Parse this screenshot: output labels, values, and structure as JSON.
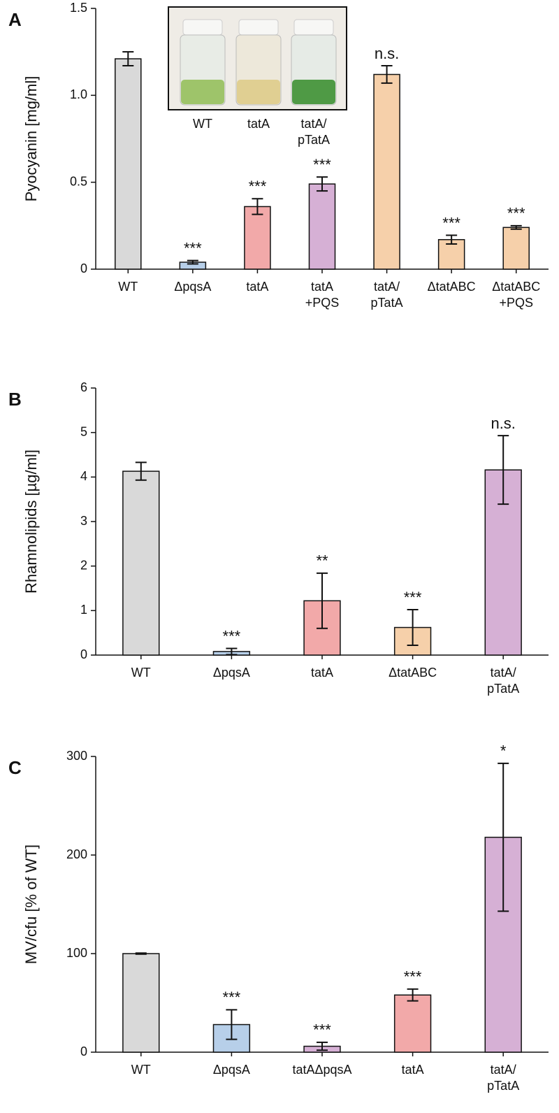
{
  "chart_data": [
    {
      "type": "bar",
      "panel": "A",
      "y_label": "Pyocyanin [mg/ml]",
      "categories": [
        [
          "WT"
        ],
        [
          "ΔpqsA"
        ],
        [
          "tatA"
        ],
        [
          "tatA",
          "+PQS"
        ],
        [
          "tatA/",
          "pTatA"
        ],
        [
          "ΔtatABC"
        ],
        [
          "ΔtatABC",
          "+PQS"
        ]
      ],
      "values": [
        1.21,
        0.04,
        0.36,
        0.49,
        1.12,
        0.17,
        0.24
      ],
      "errors": [
        0.04,
        0.01,
        0.045,
        0.04,
        0.05,
        0.025,
        0.01
      ],
      "annotations": [
        null,
        "***",
        "***",
        "***",
        "n.s.",
        "***",
        "***"
      ],
      "colors": [
        "#d9d9d9",
        "#b7cfe9",
        "#f2a9a9",
        "#d6b0d5",
        "#f6d0aa",
        "#f6d0aa",
        "#f6d0aa"
      ],
      "ylim": [
        0,
        1.5
      ],
      "yticks": [
        0,
        0.5,
        {
          "value": 1,
          "label": "1.0"
        },
        1.5
      ],
      "inset_labels": [
        [
          "WT"
        ],
        [
          "tatA"
        ],
        [
          "tatA/",
          "pTatA"
        ]
      ]
    },
    {
      "type": "bar",
      "panel": "B",
      "y_label": "Rhamnolipids [µg/ml]",
      "categories": [
        [
          "WT"
        ],
        [
          "ΔpqsA"
        ],
        [
          "tatA"
        ],
        [
          "ΔtatABC"
        ],
        [
          "tatA/",
          "pTatA"
        ]
      ],
      "values": [
        4.13,
        0.08,
        1.22,
        0.62,
        4.16
      ],
      "errors": [
        0.2,
        0.07,
        0.62,
        0.4,
        0.77
      ],
      "annotations": [
        null,
        "***",
        "**",
        "***",
        "n.s."
      ],
      "colors": [
        "#d9d9d9",
        "#b7cfe9",
        "#f2a9a9",
        "#f6d0aa",
        "#d6b0d5"
      ],
      "ylim": [
        0,
        6
      ],
      "yticks": [
        0,
        1,
        2,
        3,
        4,
        5,
        6
      ]
    },
    {
      "type": "bar",
      "panel": "C",
      "y_label": "MV/cfu [% of WT]",
      "categories": [
        [
          "WT"
        ],
        [
          "ΔpqsA"
        ],
        [
          "tatAΔpqsA"
        ],
        [
          "tatA"
        ],
        [
          "tatA/",
          "pTatA"
        ]
      ],
      "values": [
        100,
        28,
        6,
        58,
        218
      ],
      "errors": [
        0.5,
        15,
        4,
        6,
        75
      ],
      "annotations": [
        null,
        "***",
        "***",
        "***",
        "*"
      ],
      "colors": [
        "#d9d9d9",
        "#b7cfe9",
        "#d6b0d5",
        "#f2a9a9",
        "#d6b0d5"
      ],
      "ylim": [
        0,
        300
      ],
      "yticks": [
        0,
        100,
        200,
        300
      ]
    }
  ]
}
